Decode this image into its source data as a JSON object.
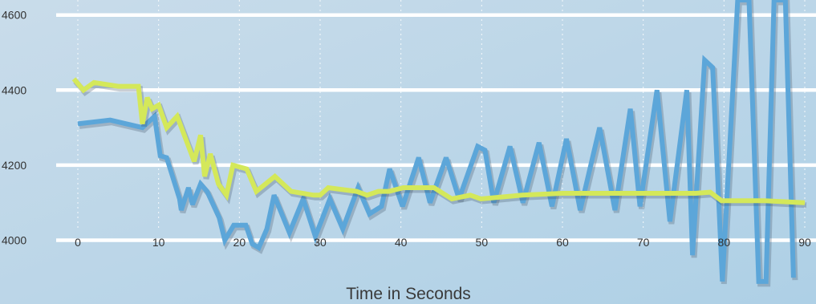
{
  "chart_data": {
    "type": "line",
    "title": "",
    "xlabel": "Time in Seconds",
    "ylabel": "",
    "xlim": [
      0,
      90
    ],
    "ylim": [
      3830,
      4640
    ],
    "x_ticks": [
      0,
      10,
      20,
      30,
      40,
      50,
      60,
      70,
      80,
      90
    ],
    "y_ticks": [
      4000,
      4200,
      4400,
      4600
    ],
    "grid": {
      "horizontal": "solid white bands",
      "vertical": "dotted white"
    },
    "legend": "none",
    "colors": {
      "background_top": "#c9dcea",
      "background_bottom": "#aed0e6",
      "blue_series": "#5ca6d9",
      "yellow_series": "#d4e85a",
      "grid_band": "#ffffff"
    },
    "series": [
      {
        "color": "#5ca6d9",
        "points": [
          [
            0,
            4310
          ],
          [
            4,
            4320
          ],
          [
            8,
            4300
          ],
          [
            9.5,
            4330
          ],
          [
            10.2,
            4225
          ],
          [
            11,
            4220
          ],
          [
            12.6,
            4110
          ],
          [
            12.8,
            4080
          ],
          [
            13.7,
            4140
          ],
          [
            14.2,
            4095
          ],
          [
            15.2,
            4150
          ],
          [
            16,
            4130
          ],
          [
            17.5,
            4060
          ],
          [
            18.2,
            4000
          ],
          [
            19.3,
            4040
          ],
          [
            20.8,
            4040
          ],
          [
            21.6,
            3990
          ],
          [
            22.4,
            3980
          ],
          [
            23.4,
            4030
          ],
          [
            24.3,
            4120
          ],
          [
            26.2,
            4020
          ],
          [
            27.9,
            4110
          ],
          [
            29.4,
            4010
          ],
          [
            31.2,
            4110
          ],
          [
            32.8,
            4030
          ],
          [
            34.7,
            4140
          ],
          [
            36.1,
            4070
          ],
          [
            37.6,
            4090
          ],
          [
            38.6,
            4190
          ],
          [
            40.2,
            4090
          ],
          [
            42.2,
            4220
          ],
          [
            43.6,
            4100
          ],
          [
            45.6,
            4220
          ],
          [
            47.2,
            4110
          ],
          [
            49.5,
            4250
          ],
          [
            50.4,
            4240
          ],
          [
            51.5,
            4100
          ],
          [
            53.5,
            4250
          ],
          [
            55.1,
            4100
          ],
          [
            57.1,
            4260
          ],
          [
            58.7,
            4090
          ],
          [
            60.5,
            4270
          ],
          [
            62.2,
            4080
          ],
          [
            64.6,
            4300
          ],
          [
            66.5,
            4080
          ],
          [
            68.4,
            4350
          ],
          [
            69.6,
            4090
          ],
          [
            71.7,
            4400
          ],
          [
            73.3,
            4050
          ],
          [
            75.4,
            4400
          ],
          [
            76.1,
            3960
          ],
          [
            77.6,
            4480
          ],
          [
            78.6,
            4460
          ],
          [
            79.8,
            3890
          ],
          [
            81.7,
            4640
          ],
          [
            83.1,
            4640
          ],
          [
            84.3,
            3890
          ],
          [
            85.2,
            3890
          ],
          [
            86.2,
            4640
          ],
          [
            87.6,
            4640
          ],
          [
            88.6,
            3900
          ]
        ]
      },
      {
        "color": "#d4e85a",
        "points": [
          [
            -0.5,
            4430
          ],
          [
            0.7,
            4400
          ],
          [
            2,
            4420
          ],
          [
            5,
            4410
          ],
          [
            7.5,
            4410
          ],
          [
            8,
            4310
          ],
          [
            8.6,
            4380
          ],
          [
            9.2,
            4350
          ],
          [
            10,
            4360
          ],
          [
            11,
            4300
          ],
          [
            12.3,
            4330
          ],
          [
            14.4,
            4210
          ],
          [
            15.2,
            4280
          ],
          [
            15.7,
            4170
          ],
          [
            16.4,
            4230
          ],
          [
            17.4,
            4150
          ],
          [
            18.4,
            4120
          ],
          [
            19.2,
            4200
          ],
          [
            20.9,
            4190
          ],
          [
            22.1,
            4130
          ],
          [
            24.4,
            4170
          ],
          [
            26.4,
            4130
          ],
          [
            29.2,
            4120
          ],
          [
            30,
            4120
          ],
          [
            31,
            4140
          ],
          [
            34.5,
            4130
          ],
          [
            35.8,
            4120
          ],
          [
            37.2,
            4130
          ],
          [
            38.5,
            4130
          ],
          [
            40.3,
            4140
          ],
          [
            41.9,
            4140
          ],
          [
            44.1,
            4140
          ],
          [
            46.3,
            4110
          ],
          [
            48.6,
            4120
          ],
          [
            49.9,
            4110
          ],
          [
            55,
            4120
          ],
          [
            60,
            4125
          ],
          [
            65,
            4125
          ],
          [
            70,
            4125
          ],
          [
            76.5,
            4125
          ],
          [
            78.3,
            4128
          ],
          [
            79.7,
            4105
          ],
          [
            85,
            4105
          ],
          [
            90,
            4100
          ]
        ]
      }
    ]
  }
}
